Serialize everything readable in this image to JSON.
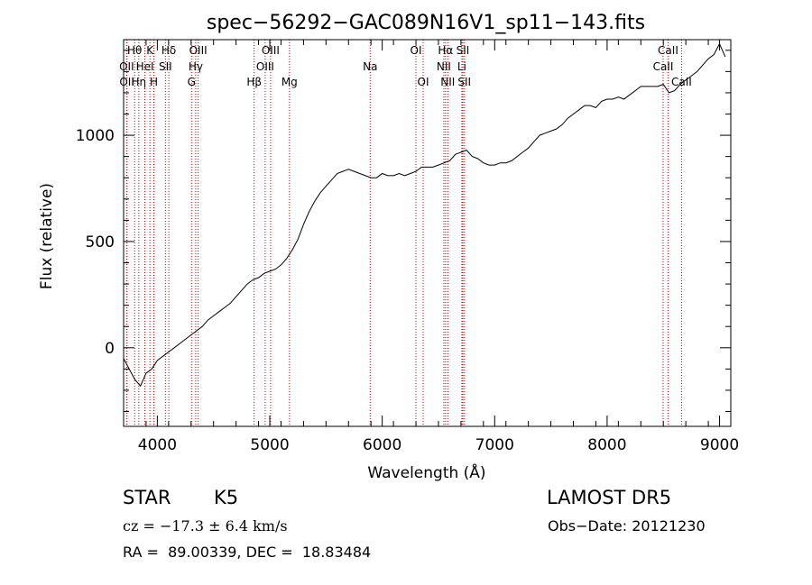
{
  "chart_data": {
    "type": "line",
    "title": "spec−56292−GAC089N16V1_sp11−143.fits",
    "xlabel": "Wavelength (Å)",
    "ylabel": "Flux (relative)",
    "xlim": [
      3700,
      9100
    ],
    "ylim": [
      -370,
      1450
    ],
    "x_ticks": [
      4000,
      5000,
      6000,
      7000,
      8000,
      9000
    ],
    "y_ticks": [
      0,
      500,
      1000
    ],
    "series": [
      {
        "x": [
          3700,
          3750,
          3800,
          3850,
          3900,
          3950,
          4000,
          4050,
          4100,
          4150,
          4200,
          4250,
          4300,
          4350,
          4400,
          4450,
          4500,
          4550,
          4600,
          4650,
          4700,
          4750,
          4800,
          4850,
          4900,
          4950,
          5000,
          5050,
          5100,
          5150,
          5200,
          5250,
          5300,
          5350,
          5400,
          5450,
          5500,
          5550,
          5600,
          5650,
          5700,
          5750,
          5800,
          5850,
          5900,
          5950,
          6000,
          6050,
          6100,
          6150,
          6200,
          6250,
          6300,
          6350,
          6400,
          6450,
          6500,
          6550,
          6600,
          6650,
          6700,
          6750,
          6800,
          6850,
          6900,
          6950,
          7000,
          7050,
          7100,
          7150,
          7200,
          7250,
          7300,
          7350,
          7400,
          7450,
          7500,
          7550,
          7600,
          7650,
          7700,
          7750,
          7800,
          7850,
          7900,
          7950,
          8000,
          8050,
          8100,
          8150,
          8200,
          8250,
          8300,
          8350,
          8400,
          8450,
          8500,
          8550,
          8600,
          8650,
          8700,
          8750,
          8800,
          8850,
          8900,
          8950,
          9000,
          9050
        ],
        "y": [
          -50,
          -100,
          -150,
          -180,
          -120,
          -100,
          -60,
          -40,
          -20,
          0,
          20,
          40,
          60,
          80,
          100,
          130,
          150,
          170,
          190,
          210,
          240,
          270,
          300,
          320,
          330,
          350,
          360,
          370,
          390,
          420,
          460,
          510,
          580,
          640,
          690,
          730,
          760,
          790,
          820,
          830,
          840,
          830,
          820,
          810,
          800,
          800,
          820,
          810,
          810,
          820,
          810,
          820,
          830,
          850,
          850,
          850,
          860,
          870,
          880,
          910,
          920,
          930,
          900,
          890,
          870,
          860,
          860,
          870,
          870,
          880,
          900,
          920,
          940,
          970,
          1000,
          1010,
          1020,
          1030,
          1050,
          1080,
          1100,
          1120,
          1140,
          1140,
          1130,
          1160,
          1170,
          1170,
          1180,
          1170,
          1190,
          1210,
          1230,
          1230,
          1230,
          1230,
          1240,
          1200,
          1210,
          1240,
          1260,
          1280,
          1300,
          1330,
          1360,
          1380,
          1430,
          1370
        ]
      }
    ],
    "lines": [
      {
        "label": "Hθ",
        "wavelength": 3798,
        "row": 1
      },
      {
        "label": "OII",
        "wavelength": 3727,
        "row": 2
      },
      {
        "label": "OII",
        "wavelength": 3729,
        "row": 3
      },
      {
        "label": "K",
        "wavelength": 3934,
        "row": 1
      },
      {
        "label": "HeI",
        "wavelength": 3889,
        "row": 2
      },
      {
        "label": "Hη",
        "wavelength": 3835,
        "row": 3
      },
      {
        "label": "H",
        "wavelength": 3969,
        "row": 3
      },
      {
        "label": "Hδ",
        "wavelength": 4102,
        "row": 1
      },
      {
        "label": "SII",
        "wavelength": 4072,
        "row": 2
      },
      {
        "label": "OIII",
        "wavelength": 4363,
        "row": 1
      },
      {
        "label": "Hγ",
        "wavelength": 4341,
        "row": 2
      },
      {
        "label": "G",
        "wavelength": 4304,
        "row": 3
      },
      {
        "label": "OIII",
        "wavelength": 5007,
        "row": 1
      },
      {
        "label": "OIII",
        "wavelength": 4959,
        "row": 2
      },
      {
        "label": "Hβ",
        "wavelength": 4861,
        "row": 3
      },
      {
        "label": "Mg",
        "wavelength": 5175,
        "row": 3
      },
      {
        "label": "Na",
        "wavelength": 5893,
        "row": 2
      },
      {
        "label": "OI",
        "wavelength": 6300,
        "row": 1
      },
      {
        "label": "OI",
        "wavelength": 6364,
        "row": 3
      },
      {
        "label": "Hα",
        "wavelength": 6563,
        "row": 1
      },
      {
        "label": "SII",
        "wavelength": 6717,
        "row": 1
      },
      {
        "label": "NII",
        "wavelength": 6548,
        "row": 2
      },
      {
        "label": "Li",
        "wavelength": 6708,
        "row": 2
      },
      {
        "label": "NII",
        "wavelength": 6583,
        "row": 3
      },
      {
        "label": "SII",
        "wavelength": 6731,
        "row": 3
      },
      {
        "label": "CaII",
        "wavelength": 8542,
        "row": 1
      },
      {
        "label": "CaII",
        "wavelength": 8498,
        "row": 2
      },
      {
        "label": "CaII",
        "wavelength": 8662,
        "row": 3
      }
    ]
  },
  "info": {
    "object_class": "STAR",
    "subclass": "K5",
    "survey": "LAMOST DR5",
    "velocity": "cz = −17.3 ± 6.4 km/s",
    "obs_date": "Obs−Date: 20121230",
    "coords": "RA =  89.00339, DEC =  18.83484"
  }
}
